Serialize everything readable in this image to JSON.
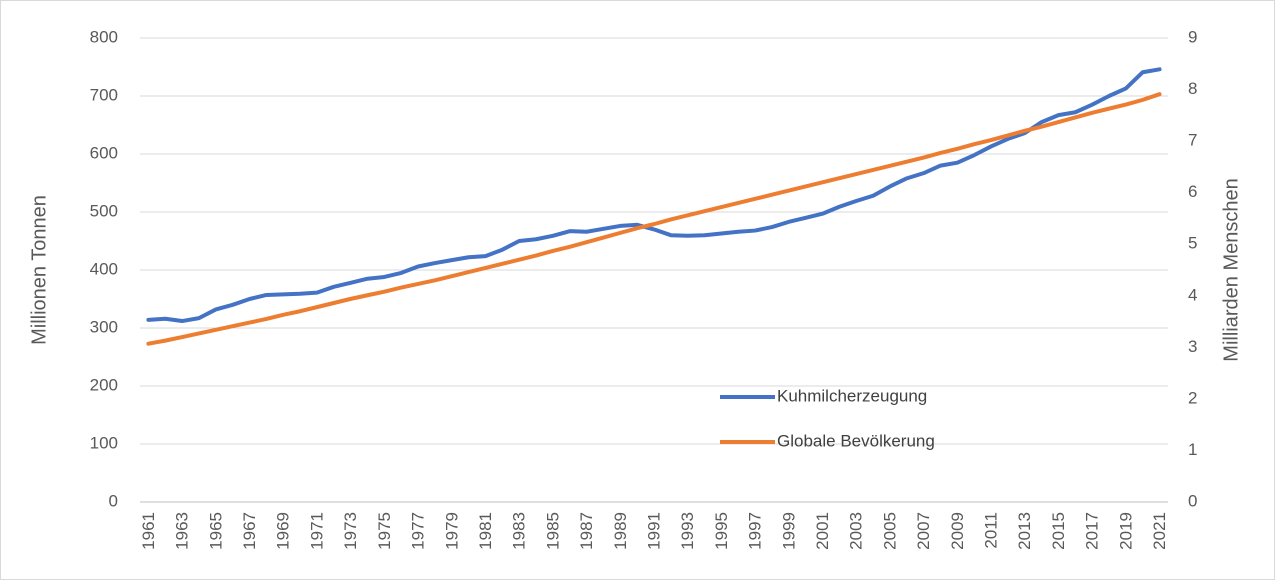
{
  "chart_data": {
    "type": "line",
    "categories": [
      "1961",
      null,
      "1963",
      null,
      "1965",
      null,
      "1967",
      null,
      "1969",
      null,
      "1971",
      null,
      "1973",
      null,
      "1975",
      null,
      "1977",
      null,
      "1979",
      null,
      "1981",
      null,
      "1983",
      null,
      "1985",
      null,
      "1987",
      null,
      "1989",
      null,
      "1991",
      null,
      "1993",
      null,
      "1995",
      null,
      "1997",
      null,
      "1999",
      null,
      "2001",
      null,
      "2003",
      null,
      "2005",
      null,
      "2007",
      null,
      "2009",
      null,
      "2011",
      null,
      "2013",
      null,
      "2015",
      null,
      "2017",
      null,
      "2019",
      null,
      "2021"
    ],
    "y_label": "Millionen Tonnen",
    "y2_label": "Milliarden Menschen",
    "ylim": [
      0,
      800
    ],
    "yticks": [
      0,
      100,
      200,
      300,
      400,
      500,
      600,
      700,
      800
    ],
    "y2lim": [
      0,
      9
    ],
    "y2ticks": [
      0,
      1,
      2,
      3,
      4,
      5,
      6,
      7,
      8,
      9
    ],
    "grid": true,
    "legend": "center",
    "series": [
      {
        "name": "Kuhmilcherzeugung",
        "color": "#4472c4",
        "values": [
          314,
          316,
          312,
          317,
          332,
          340,
          350,
          357,
          358,
          359,
          361,
          371,
          378,
          385,
          388,
          395,
          406,
          412,
          417,
          422,
          424,
          435,
          450,
          453,
          459,
          467,
          466,
          471,
          476,
          478,
          470,
          460,
          459,
          460,
          463,
          466,
          468,
          474,
          483,
          490,
          497,
          509,
          519,
          528,
          544,
          558,
          567,
          580,
          585,
          598,
          613,
          626,
          636,
          655,
          667,
          672,
          685,
          700,
          713,
          741,
          746
        ]
      },
      {
        "name": "Globale Bevölkerung",
        "color": "#ed7d31",
        "axis": "y2",
        "values": [
          3.07,
          3.13,
          3.2,
          3.27,
          3.34,
          3.41,
          3.48,
          3.55,
          3.63,
          3.7,
          3.78,
          3.86,
          3.94,
          4.01,
          4.08,
          4.16,
          4.23,
          4.3,
          4.38,
          4.46,
          4.54,
          4.62,
          4.7,
          4.78,
          4.87,
          4.95,
          5.04,
          5.13,
          5.22,
          5.31,
          5.39,
          5.48,
          5.56,
          5.64,
          5.72,
          5.8,
          5.88,
          5.96,
          6.04,
          6.12,
          6.2,
          6.28,
          6.36,
          6.44,
          6.52,
          6.6,
          6.68,
          6.77,
          6.85,
          6.94,
          7.02,
          7.11,
          7.2,
          7.28,
          7.37,
          7.46,
          7.55,
          7.63,
          7.71,
          7.8,
          7.91
        ]
      }
    ]
  }
}
